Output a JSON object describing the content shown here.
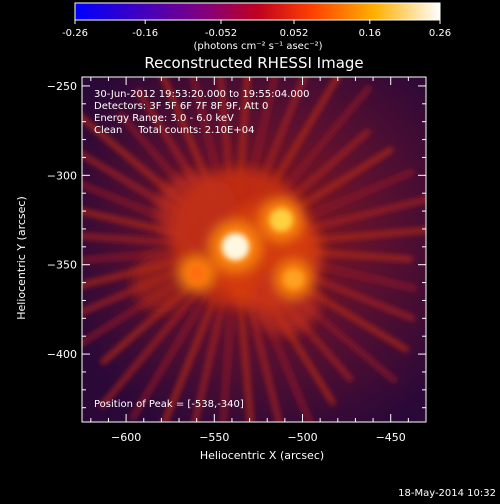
{
  "colorbar": {
    "ticks": [
      "-0.26",
      "-0.16",
      "-0.052",
      "0.052",
      "0.16",
      "0.26"
    ],
    "units_label": "(photons cm⁻² s⁻¹ asec⁻²)",
    "range": [
      -0.26,
      0.26
    ]
  },
  "plot": {
    "title": "Reconstructed RHESSI Image",
    "xlabel": "Heliocentric X (arcsec)",
    "ylabel": "Heliocentric Y (arcsec)",
    "x_ticks": [
      "−600",
      "−550",
      "−500",
      "−450"
    ],
    "y_ticks": [
      "−250",
      "−300",
      "−350",
      "−400"
    ],
    "xlim": [
      -625,
      -430
    ],
    "ylim": [
      -438,
      -245
    ]
  },
  "annotations": {
    "time_range": "30-Jun-2012 19:53:20.000 to 19:55:04.000",
    "detectors": "Detectors: 3F 5F 6F 7F 8F 9F, Att 0",
    "energy": "Energy Range: 3.0 - 6.0 keV",
    "clean": "Clean     Total counts: 2.10E+04",
    "peak": "Position of Peak = [-538,-340]"
  },
  "footer": {
    "timestamp": "18-May-2014 10:32"
  },
  "chart_data": {
    "type": "heatmap",
    "title": "Reconstructed RHESSI Image",
    "xlabel": "Heliocentric X (arcsec)",
    "ylabel": "Heliocentric Y (arcsec)",
    "xlim": [
      -625,
      -430
    ],
    "ylim": [
      -438,
      -245
    ],
    "color_range": [
      -0.26,
      0.26
    ],
    "sources": [
      {
        "x": -538,
        "y": -340,
        "intensity": 0.26
      },
      {
        "x": -512,
        "y": -325,
        "intensity": 0.18
      },
      {
        "x": -505,
        "y": -358,
        "intensity": 0.12
      },
      {
        "x": -560,
        "y": -355,
        "intensity": 0.11
      }
    ],
    "peak": {
      "x": -538,
      "y": -340
    }
  }
}
